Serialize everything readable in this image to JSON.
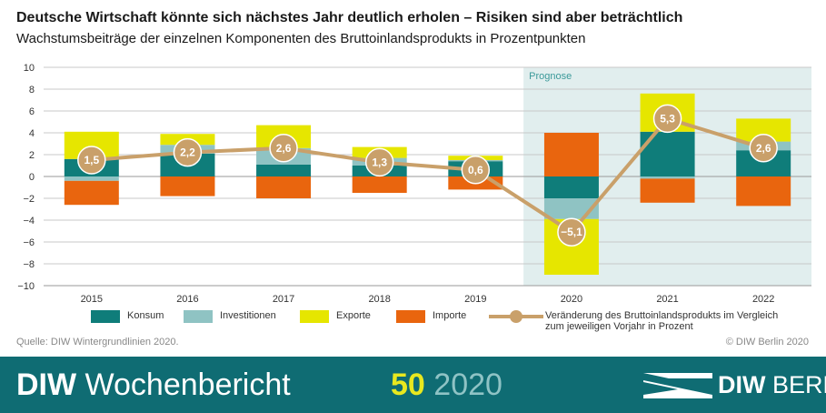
{
  "header": {
    "title": "Deutsche Wirtschaft könnte sich nächstes Jahr deutlich erholen – Risiken sind aber beträchtlich",
    "subtitle": "Wachstumsbeiträge der einzelnen Komponenten des Bruttoinlandsprodukts in Prozentpunkten"
  },
  "chart_data": {
    "type": "bar",
    "stacked": true,
    "categories": [
      "2015",
      "2016",
      "2017",
      "2018",
      "2019",
      "2020",
      "2021",
      "2022"
    ],
    "ylim": [
      -10,
      10
    ],
    "yticks": [
      10,
      8,
      6,
      4,
      2,
      0,
      -2,
      -4,
      -6,
      -8,
      -10
    ],
    "ytick_labels": [
      "10",
      "8",
      "6",
      "4",
      "2",
      "0",
      "−2",
      "−4",
      "−6",
      "−8",
      "−10"
    ],
    "grid": true,
    "forecast_label": "Prognose",
    "forecast_categories": [
      "2020",
      "2021",
      "2022"
    ],
    "series": [
      {
        "name": "Konsum",
        "color": "#0f7d7a",
        "values": [
          1.6,
          2.1,
          1.1,
          1.0,
          1.4,
          -2.0,
          4.1,
          2.4
        ]
      },
      {
        "name": "Investitionen",
        "color": "#8fc3c3",
        "values": [
          -0.4,
          0.8,
          1.5,
          0.7,
          0.1,
          -1.9,
          -0.2,
          0.8
        ]
      },
      {
        "name": "Exporte",
        "color": "#e6e600",
        "values": [
          2.5,
          1.0,
          2.1,
          1.0,
          0.4,
          -5.1,
          3.5,
          2.1
        ]
      },
      {
        "name": "Importe",
        "color": "#e9650e",
        "values": [
          -2.2,
          -1.8,
          -2.0,
          -1.5,
          -1.2,
          4.0,
          -2.2,
          -2.7
        ]
      }
    ],
    "line": {
      "name": "Veränderung des Bruttoinlandsprodukts im Vergleich zum jeweiligen Vorjahr in Prozent",
      "color": "#c9a06a",
      "values": [
        1.5,
        2.2,
        2.6,
        1.3,
        0.6,
        -5.1,
        5.3,
        2.6
      ],
      "labels": [
        "1,5",
        "2,2",
        "2,6",
        "1,3",
        "0,6",
        "−5,1",
        "5,3",
        "2,6"
      ]
    }
  },
  "legend": {
    "konsum": "Konsum",
    "investitionen": "Investitionen",
    "exporte": "Exporte",
    "importe": "Importe",
    "line_label": "Veränderung des Bruttoinlandsprodukts im Vergleich zum jeweiligen Vorjahr in Prozent"
  },
  "source": "Quelle: DIW Wintergrundlinien 2020.",
  "copyright": "© DIW Berlin 2020",
  "footer": {
    "brand_bold": "DIW",
    "brand_rest": " Wochenbericht",
    "issue_number": "50",
    "issue_year": "2020",
    "logo_bold": "DIW",
    "logo_rest": " BERLIN"
  },
  "colors": {
    "footer_bg": "#0f6c73",
    "forecast_bg": "#e1eeee",
    "issue_number": "#e8e81f"
  }
}
